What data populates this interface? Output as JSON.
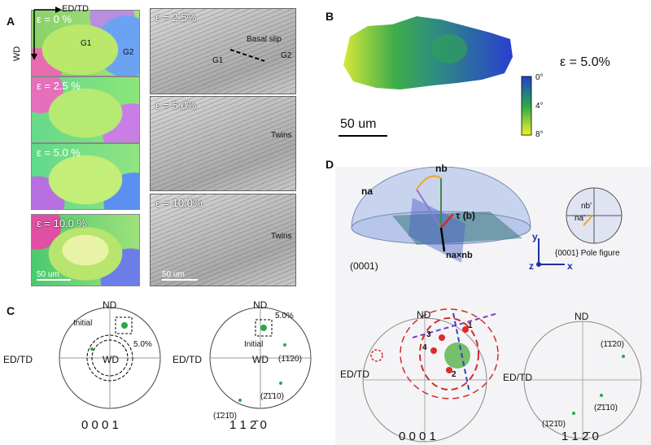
{
  "panels": {
    "a": "A",
    "b": "B",
    "c": "C",
    "d": "D"
  },
  "panel_a": {
    "axis_ed_td": "ED/TD",
    "axis_wd": "WD",
    "ebsd_labels": [
      "ε = 0 %",
      "ε = 2.5 %",
      "ε = 5.0 %",
      "ε = 10.0 %"
    ],
    "grain_labels": [
      "G1",
      "G2"
    ],
    "scale_bar": "50 um",
    "sem_labels": [
      "ε = 2.5%",
      "ε = 5.0%",
      "ε = 10.0%"
    ],
    "basal_slip": "Basal slip",
    "sem_grains": [
      "G1",
      "G2"
    ],
    "twins": "Twins",
    "sem_scale": "50 um"
  },
  "panel_b": {
    "strain": "ε = 5.0%",
    "colorbar_ticks": [
      "0°",
      "4°",
      "8°"
    ],
    "scale_bar": "50 um",
    "colors": {
      "high": "#1f3fd1",
      "mid": "#2aa84a",
      "low": "#f2f02a"
    }
  },
  "panel_c": {
    "pf1": {
      "nd": "ND",
      "left": "ED/TD",
      "center": "WD",
      "initial": "Initial",
      "strain": "5.0%",
      "caption": "0 0 0 1"
    },
    "pf2": {
      "nd": "ND",
      "left": "ED/TD",
      "center": "WD",
      "initial": "Initial",
      "strain": "5.0%",
      "poles": [
        "(1̄1̄20)",
        "(2̄1̄10)",
        "(1̄21̄0)"
      ],
      "caption": "1 1 2̄ 0"
    }
  },
  "panel_d": {
    "na": "na",
    "nb": "nb",
    "tau": "τ (b)",
    "cross": "na×nb",
    "plane": "(0001)",
    "pole_fig": "{0001} Pole figure",
    "nb_prime": "nb'",
    "na_prime": "na'",
    "axes": {
      "y": "y",
      "z": "z",
      "x": "x"
    },
    "pf1": {
      "nd": "ND",
      "left": "ED/TD",
      "numbers": [
        "1",
        "2",
        "3",
        "4"
      ],
      "caption": "0 0 0 1"
    },
    "pf2": {
      "nd": "ND",
      "left": "ED/TD",
      "poles": [
        "(1̄1̄20)",
        "(2̄1̄10)",
        "(1̄21̄0)"
      ],
      "caption": "1 1 2̄ 0"
    }
  }
}
